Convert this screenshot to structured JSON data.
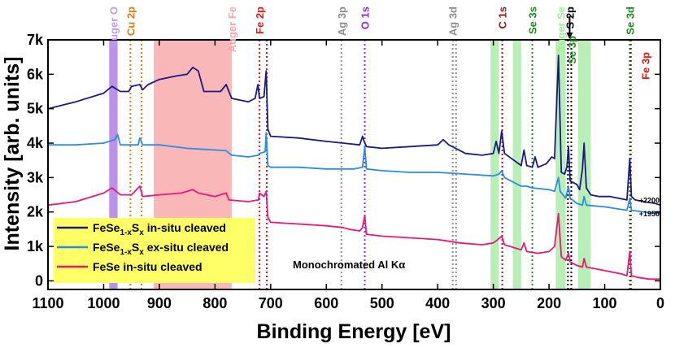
{
  "chart_data": {
    "type": "line",
    "title": "",
    "xlabel": "Binding Energy [eV]",
    "ylabel": "Intensity [arb. units]",
    "xlim": [
      1100,
      0
    ],
    "ylim": [
      -250,
      7000
    ],
    "x_ticks": [
      1100,
      1000,
      900,
      800,
      700,
      600,
      500,
      400,
      300,
      200,
      100,
      0
    ],
    "y_ticks": [
      0,
      1000,
      2000,
      3000,
      4000,
      5000,
      6000,
      7000
    ],
    "y_tick_labels": [
      "0",
      "1k",
      "2k",
      "3k",
      "4k",
      "5k",
      "6k",
      "7k"
    ],
    "series": [
      {
        "name": "FeSe1-xSx in-situ cleaved",
        "legend_main": "FeSe",
        "legend_sub1": "1-x",
        "legend_mid": "S",
        "legend_sub2": "x",
        "legend_tail": " in-situ cleaved",
        "color": "#1a1a80",
        "offset_label": "+2200",
        "points": [
          [
            1100,
            5000
          ],
          [
            1050,
            5200
          ],
          [
            1000,
            5450
          ],
          [
            985,
            5650
          ],
          [
            970,
            5500
          ],
          [
            955,
            5500
          ],
          [
            950,
            5650
          ],
          [
            935,
            5700
          ],
          [
            930,
            5550
          ],
          [
            920,
            5700
          ],
          [
            900,
            5850
          ],
          [
            870,
            5950
          ],
          [
            850,
            6000
          ],
          [
            840,
            6200
          ],
          [
            830,
            6100
          ],
          [
            820,
            5500
          ],
          [
            810,
            5500
          ],
          [
            790,
            5500
          ],
          [
            780,
            5700
          ],
          [
            770,
            5300
          ],
          [
            740,
            5200
          ],
          [
            728,
            5300
          ],
          [
            723,
            5700
          ],
          [
            720,
            5300
          ],
          [
            712,
            5350
          ],
          [
            708,
            6100
          ],
          [
            705,
            4400
          ],
          [
            700,
            4200
          ],
          [
            650,
            4150
          ],
          [
            600,
            4050
          ],
          [
            570,
            4000
          ],
          [
            540,
            3950
          ],
          [
            535,
            4200
          ],
          [
            532,
            4050
          ],
          [
            528,
            3900
          ],
          [
            500,
            3850
          ],
          [
            450,
            3900
          ],
          [
            400,
            3950
          ],
          [
            390,
            4100
          ],
          [
            380,
            3950
          ],
          [
            350,
            3700
          ],
          [
            320,
            3650
          ],
          [
            300,
            3700
          ],
          [
            295,
            4050
          ],
          [
            290,
            3700
          ],
          [
            285,
            4350
          ],
          [
            280,
            3700
          ],
          [
            250,
            3350
          ],
          [
            245,
            3800
          ],
          [
            240,
            3350
          ],
          [
            230,
            3300
          ],
          [
            225,
            3600
          ],
          [
            220,
            3300
          ],
          [
            205,
            3400
          ],
          [
            195,
            3600
          ],
          [
            190,
            3550
          ],
          [
            183,
            6550
          ],
          [
            178,
            3150
          ],
          [
            172,
            3100
          ],
          [
            168,
            3300
          ],
          [
            165,
            3900
          ],
          [
            162,
            2900
          ],
          [
            150,
            2800
          ],
          [
            145,
            2650
          ],
          [
            140,
            3250
          ],
          [
            137,
            4000
          ],
          [
            133,
            2700
          ],
          [
            125,
            2500
          ],
          [
            110,
            2450
          ],
          [
            90,
            2450
          ],
          [
            60,
            2350
          ],
          [
            55,
            3550
          ],
          [
            52,
            2450
          ],
          [
            45,
            2350
          ],
          [
            30,
            2300
          ],
          [
            10,
            2250
          ],
          [
            0,
            2200
          ]
        ]
      },
      {
        "name": "FeSe1-xSx ex-situ cleaved",
        "legend_main": "FeSe",
        "legend_sub1": "1-x",
        "legend_mid": "S",
        "legend_sub2": "x",
        "legend_tail": " ex-situ cleaved",
        "color": "#2a8ce6",
        "offset_label": "+1950",
        "points": [
          [
            1100,
            3950
          ],
          [
            1050,
            3950
          ],
          [
            1000,
            4000
          ],
          [
            980,
            4100
          ],
          [
            975,
            4250
          ],
          [
            970,
            3950
          ],
          [
            950,
            3950
          ],
          [
            938,
            3950
          ],
          [
            935,
            4150
          ],
          [
            930,
            3950
          ],
          [
            900,
            3950
          ],
          [
            850,
            3850
          ],
          [
            800,
            3800
          ],
          [
            780,
            3780
          ],
          [
            770,
            3650
          ],
          [
            740,
            3600
          ],
          [
            722,
            3650
          ],
          [
            720,
            3700
          ],
          [
            710,
            3750
          ],
          [
            708,
            4300
          ],
          [
            705,
            3350
          ],
          [
            700,
            3300
          ],
          [
            650,
            3300
          ],
          [
            600,
            3250
          ],
          [
            550,
            3250
          ],
          [
            535,
            3300
          ],
          [
            531,
            3900
          ],
          [
            528,
            3250
          ],
          [
            500,
            3200
          ],
          [
            450,
            3150
          ],
          [
            400,
            3150
          ],
          [
            350,
            3100
          ],
          [
            300,
            3050
          ],
          [
            290,
            3100
          ],
          [
            285,
            3200
          ],
          [
            280,
            3000
          ],
          [
            250,
            2750
          ],
          [
            240,
            2750
          ],
          [
            230,
            2700
          ],
          [
            200,
            2650
          ],
          [
            190,
            2600
          ],
          [
            183,
            3000
          ],
          [
            180,
            2600
          ],
          [
            170,
            2400
          ],
          [
            165,
            2750
          ],
          [
            162,
            2400
          ],
          [
            150,
            2250
          ],
          [
            140,
            2200
          ],
          [
            137,
            2450
          ],
          [
            133,
            2200
          ],
          [
            100,
            2150
          ],
          [
            60,
            2050
          ],
          [
            55,
            2400
          ],
          [
            52,
            2050
          ],
          [
            30,
            2000
          ],
          [
            0,
            1950
          ]
        ]
      },
      {
        "name": "FeSe in-situ cleaved",
        "legend_main": "FeSe",
        "legend_sub1": "",
        "legend_mid": "",
        "legend_sub2": "",
        "legend_tail": " in-situ cleaved",
        "color": "#e8187a",
        "offset_label": "",
        "points": [
          [
            1100,
            2200
          ],
          [
            1050,
            2300
          ],
          [
            1000,
            2550
          ],
          [
            985,
            2700
          ],
          [
            970,
            2500
          ],
          [
            950,
            2500
          ],
          [
            935,
            2750
          ],
          [
            930,
            2450
          ],
          [
            900,
            2500
          ],
          [
            860,
            2550
          ],
          [
            840,
            2650
          ],
          [
            830,
            2550
          ],
          [
            800,
            2450
          ],
          [
            780,
            2550
          ],
          [
            775,
            2350
          ],
          [
            740,
            2300
          ],
          [
            722,
            2350
          ],
          [
            720,
            2550
          ],
          [
            712,
            2450
          ],
          [
            708,
            2600
          ],
          [
            705,
            1850
          ],
          [
            700,
            1700
          ],
          [
            650,
            1650
          ],
          [
            600,
            1600
          ],
          [
            570,
            1550
          ],
          [
            560,
            1500
          ],
          [
            540,
            1450
          ],
          [
            535,
            1550
          ],
          [
            531,
            1900
          ],
          [
            528,
            1350
          ],
          [
            500,
            1300
          ],
          [
            450,
            1250
          ],
          [
            400,
            1200
          ],
          [
            380,
            1150
          ],
          [
            360,
            1100
          ],
          [
            320,
            1050
          ],
          [
            300,
            1100
          ],
          [
            292,
            1200
          ],
          [
            285,
            1300
          ],
          [
            280,
            1050
          ],
          [
            250,
            900
          ],
          [
            245,
            1100
          ],
          [
            240,
            850
          ],
          [
            220,
            800
          ],
          [
            200,
            850
          ],
          [
            190,
            1000
          ],
          [
            183,
            1950
          ],
          [
            178,
            700
          ],
          [
            170,
            600
          ],
          [
            165,
            800
          ],
          [
            162,
            550
          ],
          [
            150,
            450
          ],
          [
            140,
            400
          ],
          [
            137,
            650
          ],
          [
            133,
            400
          ],
          [
            100,
            300
          ],
          [
            70,
            200
          ],
          [
            60,
            150
          ],
          [
            55,
            850
          ],
          [
            52,
            150
          ],
          [
            40,
            100
          ],
          [
            20,
            50
          ],
          [
            0,
            50
          ]
        ]
      }
    ],
    "bands": [
      {
        "x0": 990,
        "x1": 975,
        "color": "#b07ee8",
        "opacity": 0.85,
        "label": "Auger O",
        "label_color": "#c39ae8"
      },
      {
        "x0": 910,
        "x1": 770,
        "color": "#f47c7c",
        "opacity": 0.55,
        "label": "Auger Fe",
        "label_color": "#f4a6a6"
      },
      {
        "x0": 305,
        "x1": 290,
        "color": "#7fe07a",
        "opacity": 0.55,
        "label": "",
        "label_color": ""
      },
      {
        "x0": 265,
        "x1": 250,
        "color": "#7fe07a",
        "opacity": 0.55,
        "label": "",
        "label_color": ""
      },
      {
        "x0": 188,
        "x1": 170,
        "color": "#7fe07a",
        "opacity": 0.55,
        "label": "Auger Se",
        "label_color": "#9ef09a"
      },
      {
        "x0": 148,
        "x1": 125,
        "color": "#7fe07a",
        "opacity": 0.55,
        "label": "",
        "label_color": ""
      }
    ],
    "markers": [
      {
        "x": 952,
        "color": "#e07b1a",
        "label": "Cu 2p"
      },
      {
        "x": 932,
        "color": "#e07b1a",
        "label": ""
      },
      {
        "x": 720,
        "color": "#e01818",
        "label": "Fe 2p"
      },
      {
        "x": 707,
        "color": "#e01818",
        "label": ""
      },
      {
        "x": 573,
        "color": "#8c8c8c",
        "label": "Ag 3p"
      },
      {
        "x": 531,
        "color": "#8a2be2",
        "label": "O 1s"
      },
      {
        "x": 373,
        "color": "#8c8c8c",
        "label": "Ag 3d"
      },
      {
        "x": 367,
        "color": "#8c8c8c",
        "label": ""
      },
      {
        "x": 284,
        "color": "#8b1a1a",
        "label": "C 1s"
      },
      {
        "x": 230,
        "color": "#1a8c1a",
        "label": "Se 3s"
      },
      {
        "x": 166,
        "color": "#000000",
        "label": ""
      },
      {
        "x": 160,
        "color": "#000000",
        "label": ""
      },
      {
        "x": 55,
        "color": "#1a8c1a",
        "label": "Se 3d"
      },
      {
        "x": 53,
        "color": "#8b1a1a",
        "label": ""
      }
    ],
    "extra_labels": {
      "s2p": "S 2p",
      "se3p": "Se 3p",
      "fe3p": "Fe 3p"
    },
    "annotation": "Monochromated Al Kα"
  }
}
